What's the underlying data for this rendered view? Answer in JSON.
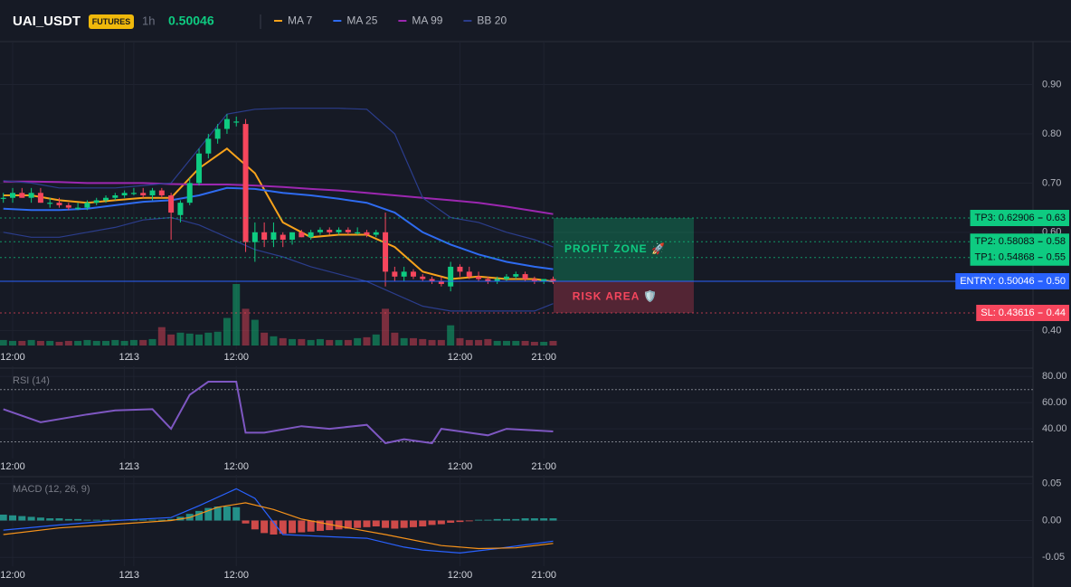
{
  "header": {
    "symbol": "UAI_USDT",
    "badge": "FUTURES",
    "interval": "1h",
    "price": "0.50046"
  },
  "chart_data": [
    {
      "type": "candlestick",
      "x": [
        -1,
        0,
        1,
        2,
        3,
        4,
        5,
        6,
        7,
        8,
        9,
        10,
        11,
        12,
        13,
        14,
        15,
        16,
        17,
        18,
        19,
        20,
        21,
        22,
        23,
        24,
        25,
        26,
        27,
        28,
        29,
        30,
        31,
        32,
        33,
        34,
        35,
        36,
        37,
        38,
        39,
        40,
        41,
        42,
        43,
        44,
        45,
        46,
        47,
        48,
        49,
        50,
        51,
        52,
        53,
        54,
        55,
        56,
        57,
        58
      ],
      "open": [
        0.67,
        0.67,
        0.68,
        0.67,
        0.68,
        0.66,
        0.66,
        0.655,
        0.65,
        0.65,
        0.66,
        0.665,
        0.67,
        0.675,
        0.68,
        0.68,
        0.675,
        0.685,
        0.675,
        0.635,
        0.66,
        0.7,
        0.76,
        0.79,
        0.81,
        0.825,
        0.82,
        0.58,
        0.6,
        0.585,
        0.595,
        0.585,
        0.6,
        0.59,
        0.6,
        0.605,
        0.6,
        0.605,
        0.6,
        0.6,
        0.595,
        0.6,
        0.52,
        0.51,
        0.52,
        0.51,
        0.505,
        0.5,
        0.49,
        0.53,
        0.52,
        0.51,
        0.505,
        0.5,
        0.505,
        0.51,
        0.515,
        0.505,
        0.5,
        0.505
      ],
      "high": [
        0.68,
        0.69,
        0.69,
        0.69,
        0.69,
        0.67,
        0.67,
        0.66,
        0.66,
        0.665,
        0.67,
        0.675,
        0.68,
        0.685,
        0.69,
        0.69,
        0.69,
        0.69,
        0.68,
        0.665,
        0.71,
        0.77,
        0.8,
        0.82,
        0.84,
        0.835,
        0.83,
        0.62,
        0.62,
        0.62,
        0.6,
        0.6,
        0.605,
        0.605,
        0.61,
        0.61,
        0.61,
        0.61,
        0.61,
        0.605,
        0.605,
        0.64,
        0.53,
        0.53,
        0.525,
        0.515,
        0.51,
        0.51,
        0.54,
        0.535,
        0.53,
        0.52,
        0.51,
        0.51,
        0.515,
        0.52,
        0.52,
        0.51,
        0.505,
        0.51
      ],
      "low": [
        0.66,
        0.66,
        0.67,
        0.66,
        0.66,
        0.65,
        0.65,
        0.645,
        0.645,
        0.645,
        0.655,
        0.66,
        0.665,
        0.67,
        0.675,
        0.67,
        0.665,
        0.67,
        0.585,
        0.62,
        0.655,
        0.695,
        0.75,
        0.78,
        0.8,
        0.815,
        0.56,
        0.54,
        0.57,
        0.57,
        0.57,
        0.575,
        0.59,
        0.585,
        0.595,
        0.595,
        0.595,
        0.595,
        0.595,
        0.59,
        0.59,
        0.49,
        0.5,
        0.5,
        0.505,
        0.5,
        0.495,
        0.49,
        0.48,
        0.51,
        0.505,
        0.5,
        0.495,
        0.495,
        0.5,
        0.505,
        0.5,
        0.495,
        0.495,
        0.495
      ],
      "close": [
        0.67,
        0.68,
        0.67,
        0.68,
        0.66,
        0.66,
        0.655,
        0.65,
        0.65,
        0.66,
        0.665,
        0.67,
        0.675,
        0.68,
        0.68,
        0.675,
        0.685,
        0.675,
        0.64,
        0.66,
        0.7,
        0.76,
        0.79,
        0.81,
        0.83,
        0.825,
        0.58,
        0.6,
        0.585,
        0.6,
        0.585,
        0.6,
        0.59,
        0.6,
        0.605,
        0.6,
        0.605,
        0.6,
        0.6,
        0.595,
        0.6,
        0.52,
        0.51,
        0.52,
        0.51,
        0.505,
        0.5,
        0.495,
        0.53,
        0.52,
        0.51,
        0.505,
        0.5,
        0.505,
        0.51,
        0.515,
        0.505,
        0.5,
        0.505,
        0.50046
      ],
      "up_color": "#0ecb81",
      "down_color": "#f6465d",
      "volume": [
        6,
        5,
        5,
        6,
        5,
        5,
        4,
        5,
        5,
        6,
        5,
        5,
        6,
        5,
        6,
        6,
        7,
        20,
        12,
        14,
        13,
        12,
        14,
        15,
        30,
        67,
        40,
        28,
        14,
        10,
        8,
        7,
        7,
        6,
        7,
        6,
        6,
        6,
        8,
        9,
        12,
        40,
        14,
        8,
        8,
        7,
        6,
        6,
        22,
        8,
        6,
        6,
        7,
        5,
        5,
        5,
        5,
        4,
        4,
        5
      ],
      "lines": [
        {
          "name": "MA 7",
          "color": "#f7a21b",
          "x": [
            -1,
            2,
            5,
            8,
            11,
            14,
            17,
            20,
            23,
            26,
            29,
            32,
            35,
            38,
            41,
            44,
            47,
            50,
            53,
            56,
            58
          ],
          "values": [
            0.675,
            0.675,
            0.665,
            0.66,
            0.665,
            0.67,
            0.67,
            0.73,
            0.77,
            0.72,
            0.62,
            0.59,
            0.595,
            0.595,
            0.57,
            0.52,
            0.505,
            0.51,
            0.505,
            0.505,
            0.5
          ]
        },
        {
          "name": "MA 25",
          "color": "#2e6bf0",
          "x": [
            -1,
            2,
            5,
            8,
            11,
            14,
            17,
            20,
            23,
            26,
            29,
            32,
            35,
            38,
            41,
            44,
            47,
            50,
            53,
            56,
            58
          ],
          "values": [
            0.648,
            0.645,
            0.645,
            0.648,
            0.655,
            0.662,
            0.665,
            0.675,
            0.69,
            0.688,
            0.68,
            0.675,
            0.668,
            0.66,
            0.64,
            0.6,
            0.575,
            0.555,
            0.54,
            0.53,
            0.525
          ]
        },
        {
          "name": "MA 99",
          "color": "#9c27b0",
          "x": [
            -1,
            2,
            5,
            8,
            11,
            14,
            17,
            20,
            23,
            26,
            29,
            32,
            35,
            38,
            41,
            44,
            47,
            50,
            53,
            56,
            58
          ],
          "values": [
            0.703,
            0.703,
            0.702,
            0.7,
            0.7,
            0.7,
            0.698,
            0.697,
            0.697,
            0.695,
            0.692,
            0.688,
            0.685,
            0.68,
            0.675,
            0.67,
            0.665,
            0.66,
            0.652,
            0.643,
            0.637
          ]
        },
        {
          "name": "BB 20",
          "color": "#2b3d8c",
          "x": [
            -1,
            2,
            5,
            8,
            11,
            14,
            17,
            20,
            23,
            26,
            29,
            32,
            35,
            38,
            41,
            44,
            47,
            50,
            53,
            56,
            58
          ],
          "upper": [
            0.705,
            0.7,
            0.69,
            0.69,
            0.69,
            0.695,
            0.7,
            0.77,
            0.84,
            0.85,
            0.852,
            0.852,
            0.852,
            0.85,
            0.8,
            0.67,
            0.63,
            0.62,
            0.6,
            0.585,
            0.57
          ],
          "lower": [
            0.6,
            0.59,
            0.59,
            0.6,
            0.61,
            0.625,
            0.63,
            0.615,
            0.59,
            0.565,
            0.55,
            0.53,
            0.515,
            0.5,
            0.475,
            0.45,
            0.44,
            0.44,
            0.44,
            0.44,
            0.455
          ]
        }
      ],
      "xlim": [
        -1.36,
        109.5
      ],
      "ylim": [
        0.37,
        0.98
      ],
      "xticks": [
        {
          "value": 0,
          "label": "12:00"
        },
        12,
        {
          "value": 24,
          "label": "12:00"
        },
        13,
        {
          "value": 48,
          "label": "12:00"
        },
        {
          "value": 57,
          "label": "21:00"
        }
      ],
      "yticks": [
        {
          "value": 0.9,
          "label": "0.90"
        },
        {
          "value": 0.8,
          "label": "0.80"
        },
        {
          "value": 0.7,
          "label": "0.70"
        },
        {
          "value": 0.6,
          "label": "0.60"
        },
        {
          "value": 0.4,
          "label": "0.40"
        }
      ],
      "levels": [
        {
          "label": "TP3: 0.62906",
          "value": 0.62906,
          "axis_label": "0.63",
          "color": "#0ecb81"
        },
        {
          "label": "TP2: 0.58083",
          "value": 0.58083,
          "axis_label": "0.58",
          "color": "#0ecb81"
        },
        {
          "label": "TP1: 0.54868",
          "value": 0.54868,
          "axis_label": "0.55",
          "color": "#0ecb81"
        },
        {
          "label": "ENTRY: 0.50046",
          "value": 0.50046,
          "axis_label": "0.50",
          "color": "#2962ff"
        },
        {
          "label": "SL: 0.43616",
          "value": 0.43616,
          "axis_label": "0.44",
          "color": "#f6465d"
        }
      ],
      "zones": [
        {
          "label": "PROFIT ZONE 🚀",
          "from": 0.50046,
          "to": 0.62906,
          "color": "#0ecb81"
        },
        {
          "label": "RISK AREA 🛡️",
          "from": 0.43616,
          "to": 0.50046,
          "color": "#f6465d"
        }
      ]
    },
    {
      "type": "line",
      "title": "RSI (14)",
      "series": [
        {
          "color": "#7e57c2",
          "x": [
            -1,
            3,
            8,
            11,
            15,
            17,
            19,
            21,
            24,
            25,
            27,
            31,
            34,
            38,
            40,
            42,
            45,
            46,
            51,
            53,
            58
          ],
          "values": [
            55,
            45,
            51,
            54,
            55,
            40,
            66,
            76,
            76,
            37,
            37,
            42,
            40,
            43,
            29,
            32,
            29,
            40,
            35,
            40,
            38
          ]
        }
      ],
      "bands": [
        30,
        70
      ],
      "xlim": [
        -1.36,
        109.5
      ],
      "ylim": [
        20,
        85
      ],
      "xticks": [
        {
          "value": 0,
          "label": "12:00"
        },
        12,
        {
          "value": 24,
          "label": "12:00"
        },
        13,
        {
          "value": 48,
          "label": "12:00"
        },
        {
          "value": 57,
          "label": "21:00"
        }
      ],
      "yticks": [
        {
          "value": 80,
          "label": "80.00"
        },
        {
          "value": 60,
          "label": "60.00"
        },
        {
          "value": 40,
          "label": "40.00"
        }
      ]
    },
    {
      "type": "macd",
      "title": "MACD (12, 26, 9)",
      "histogram": {
        "x": [
          -1,
          0,
          1,
          2,
          3,
          4,
          5,
          6,
          7,
          8,
          9,
          10,
          11,
          12,
          13,
          14,
          15,
          16,
          17,
          18,
          19,
          20,
          21,
          22,
          23,
          24,
          25,
          26,
          27,
          28,
          29,
          30,
          31,
          32,
          33,
          34,
          35,
          36,
          37,
          38,
          39,
          40,
          41,
          42,
          43,
          44,
          45,
          46,
          47,
          48,
          49,
          50,
          51,
          52,
          53,
          54,
          55,
          56,
          57,
          58
        ],
        "values": [
          0.008,
          0.007,
          0.006,
          0.005,
          0.004,
          0.003,
          0.003,
          0.002,
          0.002,
          0.001,
          0.001,
          0.001,
          0.001,
          0,
          0.001,
          0.001,
          0.001,
          0.001,
          0.002,
          0.005,
          0.009,
          0.013,
          0.017,
          0.019,
          0.019,
          0.018,
          -0.004,
          -0.012,
          -0.017,
          -0.019,
          -0.018,
          -0.017,
          -0.016,
          -0.015,
          -0.014,
          -0.013,
          -0.012,
          -0.011,
          -0.01,
          -0.009,
          -0.008,
          -0.01,
          -0.011,
          -0.01,
          -0.009,
          -0.008,
          -0.006,
          -0.005,
          -0.003,
          -0.002,
          -0.001,
          0.001,
          0.001,
          0.002,
          0.002,
          0.002,
          0.003,
          0.003,
          0.003,
          0.003
        ],
        "up_color": "#26a69a",
        "down_color": "#ef5350"
      },
      "series": [
        {
          "color": "#2962ff",
          "x": [
            -1,
            5,
            11,
            17,
            20,
            24,
            26,
            29,
            34,
            38,
            42,
            44,
            48,
            52,
            58
          ],
          "values": [
            -0.013,
            -0.006,
            0,
            0.004,
            0.02,
            0.043,
            0.03,
            -0.019,
            -0.022,
            -0.024,
            -0.036,
            -0.04,
            -0.044,
            -0.038,
            -0.028
          ]
        },
        {
          "color": "#f7931a",
          "x": [
            -1,
            5,
            11,
            17,
            19,
            22,
            25,
            28,
            31,
            36,
            40,
            46,
            50,
            54,
            58
          ],
          "values": [
            -0.019,
            -0.01,
            -0.005,
            0,
            0.004,
            0.018,
            0.024,
            0.015,
            0.002,
            -0.01,
            -0.019,
            -0.034,
            -0.038,
            -0.037,
            -0.031
          ]
        }
      ],
      "xlim": [
        -1.36,
        109.5
      ],
      "ylim": [
        -0.057,
        0.057
      ],
      "xticks": [
        {
          "value": 0,
          "label": "12:00"
        },
        12,
        {
          "value": 24,
          "label": "12:00"
        },
        13,
        {
          "value": 48,
          "label": "12:00"
        },
        {
          "value": 57,
          "label": "21:00"
        }
      ],
      "yticks": [
        {
          "value": 0.05,
          "label": "0.05"
        },
        {
          "value": 0,
          "label": "0.00"
        },
        {
          "value": -0.05,
          "label": "-0.05"
        }
      ]
    }
  ]
}
